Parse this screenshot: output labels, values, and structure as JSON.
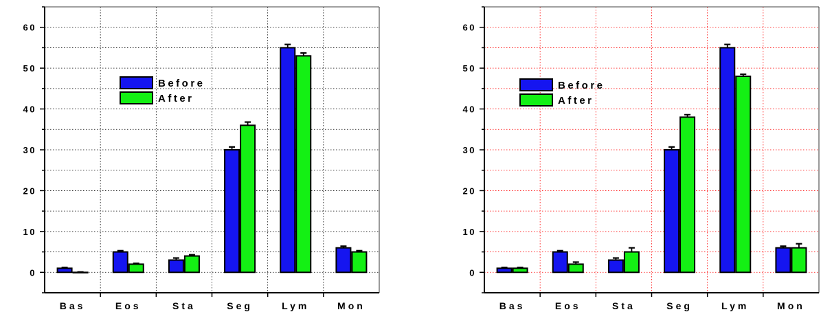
{
  "colors": {
    "before": "#1515f0",
    "after": "#14f014",
    "grid_left": "#000000",
    "grid_right": "#ff0000"
  },
  "chart_data": [
    {
      "type": "bar",
      "categories": [
        "Bas",
        "Eos",
        "Sta",
        "Seg",
        "Lym",
        "Mon"
      ],
      "series": [
        {
          "name": "Before",
          "values": [
            1,
            5,
            3,
            30,
            55,
            6
          ],
          "errors": [
            0.2,
            0.3,
            0.5,
            0.7,
            0.8,
            0.4
          ]
        },
        {
          "name": "After",
          "values": [
            0,
            2,
            4,
            36,
            53,
            5
          ],
          "errors": [
            0.1,
            0.2,
            0.3,
            0.8,
            0.7,
            0.3
          ]
        }
      ],
      "yticks": [
        "0",
        "10",
        "20",
        "30",
        "40",
        "50",
        "60"
      ],
      "ylim": [
        -5,
        65
      ],
      "grid": "dotted",
      "grid_color": "black",
      "legend": "upper-center"
    },
    {
      "type": "bar",
      "categories": [
        "Bas",
        "Eos",
        "Sta",
        "Seg",
        "Lym",
        "Mon"
      ],
      "series": [
        {
          "name": "Before",
          "values": [
            1,
            5,
            3,
            30,
            55,
            6
          ],
          "errors": [
            0.2,
            0.3,
            0.5,
            0.7,
            0.8,
            0.4
          ]
        },
        {
          "name": "After",
          "values": [
            1,
            2,
            5,
            38,
            48,
            6
          ],
          "errors": [
            0.2,
            0.5,
            1.0,
            0.6,
            0.5,
            1.0
          ]
        }
      ],
      "yticks": [
        "0",
        "10",
        "20",
        "30",
        "40",
        "50",
        "60"
      ],
      "ylim": [
        -5,
        65
      ],
      "grid": "dotted",
      "grid_color": "red",
      "legend": "upper-left"
    }
  ]
}
